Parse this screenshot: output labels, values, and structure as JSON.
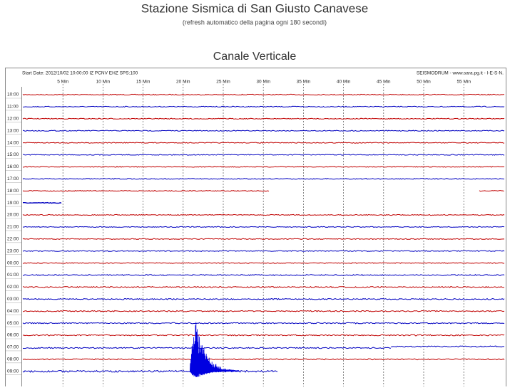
{
  "header": {
    "title": "Stazione Sismica di San Giusto Canavese",
    "subtitle": "(refresh automatico della pagina ogni 180 secondi)"
  },
  "section_title": "Canale Verticale",
  "plot": {
    "header_left": "Start Date: 2012/10/02 10:00:00 IZ PCNV EHZ SPS:100",
    "header_right": "SEISMODRUM - www.sara.pg.it - I-E-S-N.",
    "minute_labels": [
      "5 Min",
      "10 Min",
      "15 Min",
      "20 Min",
      "25 Min",
      "30 Min",
      "35 Min",
      "40 Min",
      "45 Min",
      "50 Min",
      "55 Min"
    ],
    "hour_labels": [
      "10:00",
      "11:00",
      "12:00",
      "13:00",
      "14:00",
      "15:00",
      "16:00",
      "17:00",
      "18:00",
      "19:00",
      "20:00",
      "21:00",
      "22:00",
      "23:00",
      "00:00",
      "01:00",
      "02:00",
      "03:00",
      "04:00",
      "05:00",
      "06:00",
      "07:00",
      "08:00",
      "09:00"
    ]
  }
}
